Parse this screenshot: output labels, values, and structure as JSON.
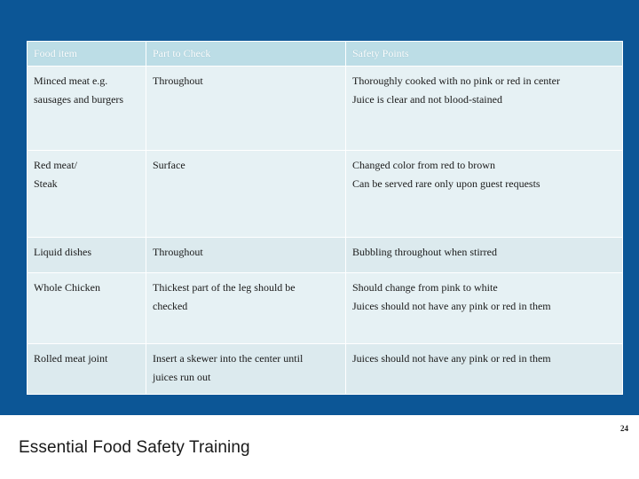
{
  "slide": {
    "footer_title": "Essential Food Safety Training",
    "page_number": "24",
    "colors": {
      "background": "#0c5696",
      "header_cell": "#bcdde6",
      "row_light": "#e6f1f4",
      "row_mid": "#dceaee"
    }
  },
  "table": {
    "headers": [
      "Food item",
      "Part to Check",
      "Safety Points"
    ],
    "rows": [
      {
        "food": [
          "Minced meat e.g.",
          "sausages and burgers"
        ],
        "part": [
          "Throughout"
        ],
        "safety": [
          "Thoroughly cooked with no pink or red in center",
          "Juice is clear and not blood-stained"
        ]
      },
      {
        "food": [
          "Red meat/",
          "Steak"
        ],
        "part": [
          "Surface"
        ],
        "safety": [
          "Changed color from red to brown",
          "Can be served rare only upon guest requests"
        ]
      },
      {
        "food": [
          "Liquid dishes"
        ],
        "part": [
          "Throughout"
        ],
        "safety": [
          "Bubbling throughout when stirred"
        ]
      },
      {
        "food": [
          "Whole Chicken"
        ],
        "part": [
          "Thickest part of the leg should be",
          "checked"
        ],
        "safety": [
          "Should change from pink to white",
          "Juices should not have any pink or red in them"
        ]
      },
      {
        "food": [
          "Rolled meat joint"
        ],
        "part": [
          "Insert a skewer into the center until",
          "juices run out"
        ],
        "safety": [
          "Juices should not have any pink or red in them"
        ]
      }
    ]
  }
}
